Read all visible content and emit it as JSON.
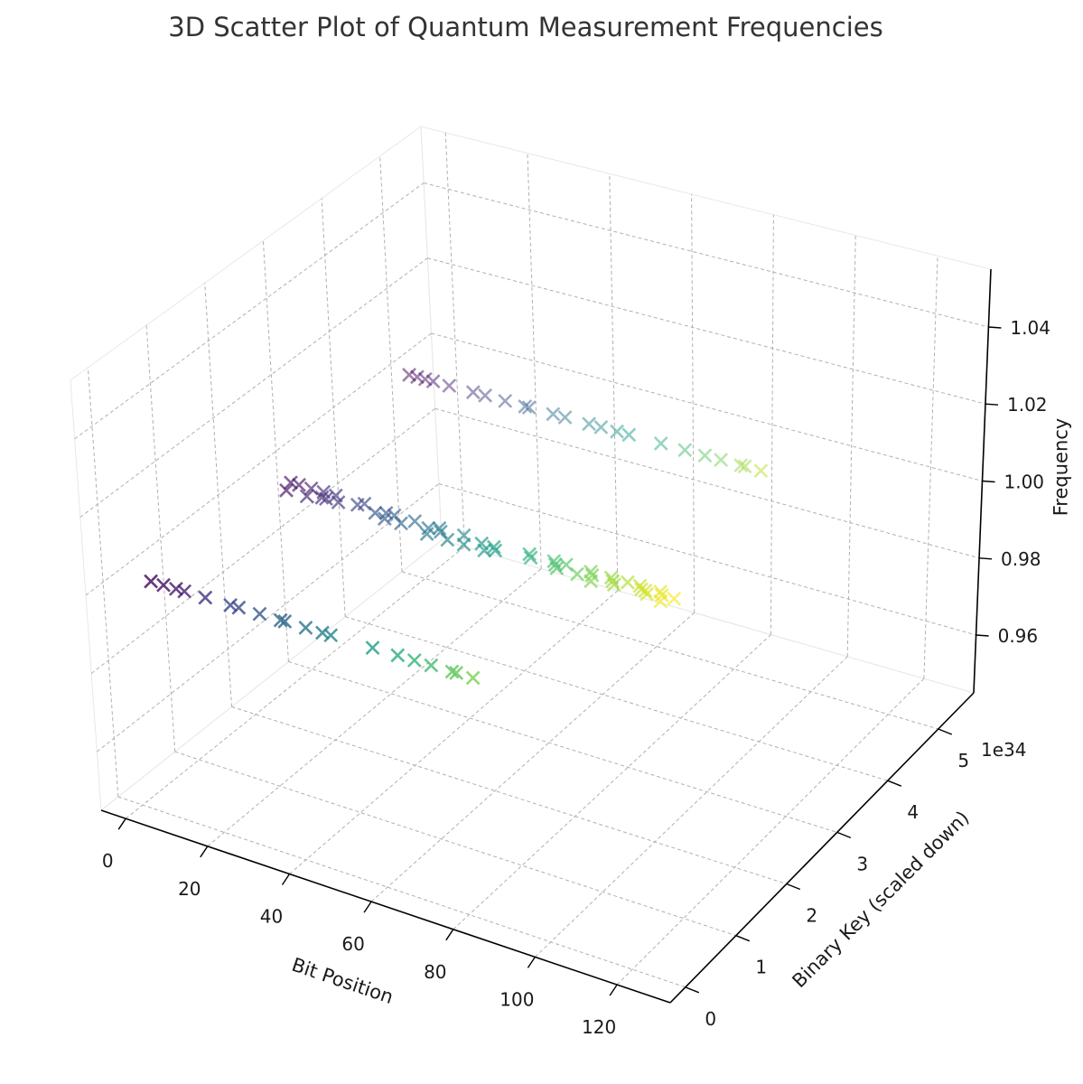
{
  "chart_data": {
    "type": "scatter",
    "projection": "3d",
    "title": "3D Scatter Plot of Quantum Measurement Frequencies",
    "xlabel": "Bit Position",
    "ylabel": "Binary Key (scaled down)",
    "zlabel": "Frequency",
    "y_offset_text": "1e34",
    "marker": "x",
    "colormap": "viridis",
    "grid": true,
    "x_ticks": [
      "0",
      "20",
      "40",
      "60",
      "80",
      "100",
      "120"
    ],
    "y_ticks": [
      "0",
      "1",
      "2",
      "3",
      "4",
      "5"
    ],
    "z_ticks": [
      "0.96",
      "0.98",
      "1.00",
      "1.02",
      "1.04"
    ],
    "xlim": [
      -6,
      133
    ],
    "ylim": [
      -0.3,
      5.7
    ],
    "zlim": [
      0.945,
      1.055
    ],
    "series": [
      {
        "z": 1.0,
        "points": [
          {
            "x": 0,
            "y": 4.9
          },
          {
            "x": 2,
            "y": 4.9
          },
          {
            "x": 4,
            "y": 4.9
          },
          {
            "x": 6,
            "y": 4.9
          },
          {
            "x": 10,
            "y": 4.9
          },
          {
            "x": 16,
            "y": 4.9
          },
          {
            "x": 19,
            "y": 4.9
          },
          {
            "x": 24,
            "y": 4.9
          },
          {
            "x": 29,
            "y": 4.9
          },
          {
            "x": 30,
            "y": 4.9
          },
          {
            "x": 36,
            "y": 4.9
          },
          {
            "x": 39,
            "y": 4.9
          },
          {
            "x": 45,
            "y": 4.9
          },
          {
            "x": 48,
            "y": 4.9
          },
          {
            "x": 52,
            "y": 4.9
          },
          {
            "x": 55,
            "y": 4.9
          },
          {
            "x": 63,
            "y": 4.9
          },
          {
            "x": 69,
            "y": 4.9
          },
          {
            "x": 74,
            "y": 4.9
          },
          {
            "x": 78,
            "y": 4.9
          },
          {
            "x": 83,
            "y": 4.9
          },
          {
            "x": 84,
            "y": 4.9
          },
          {
            "x": 88,
            "y": 4.9
          }
        ]
      },
      {
        "z": 1.0,
        "points": [
          {
            "x": 4,
            "y": 2.55
          },
          {
            "x": 6,
            "y": 2.55
          },
          {
            "x": 5,
            "y": 2.4
          },
          {
            "x": 9,
            "y": 2.55
          },
          {
            "x": 10,
            "y": 2.4
          },
          {
            "x": 12,
            "y": 2.55
          },
          {
            "x": 13,
            "y": 2.45
          },
          {
            "x": 15,
            "y": 2.55
          },
          {
            "x": 14,
            "y": 2.45
          },
          {
            "x": 17,
            "y": 2.45
          },
          {
            "x": 21,
            "y": 2.5
          },
          {
            "x": 22,
            "y": 2.55
          },
          {
            "x": 26,
            "y": 2.45
          },
          {
            "x": 28,
            "y": 2.5
          },
          {
            "x": 29,
            "y": 2.4
          },
          {
            "x": 30,
            "y": 2.5
          },
          {
            "x": 33,
            "y": 2.4
          },
          {
            "x": 35,
            "y": 2.5
          },
          {
            "x": 39,
            "y": 2.45
          },
          {
            "x": 40,
            "y": 2.35
          },
          {
            "x": 41,
            "y": 2.5
          },
          {
            "x": 42,
            "y": 2.45
          },
          {
            "x": 47,
            "y": 2.5
          },
          {
            "x": 45,
            "y": 2.35
          },
          {
            "x": 49,
            "y": 2.35
          },
          {
            "x": 52,
            "y": 2.45
          },
          {
            "x": 54,
            "y": 2.35
          },
          {
            "x": 55,
            "y": 2.45
          },
          {
            "x": 56,
            "y": 2.4
          },
          {
            "x": 63,
            "y": 2.5
          },
          {
            "x": 64,
            "y": 2.45
          },
          {
            "x": 69,
            "y": 2.5
          },
          {
            "x": 70,
            "y": 2.45
          },
          {
            "x": 71,
            "y": 2.4
          },
          {
            "x": 72,
            "y": 2.5
          },
          {
            "x": 76,
            "y": 2.4
          },
          {
            "x": 78,
            "y": 2.5
          },
          {
            "x": 79,
            "y": 2.45
          },
          {
            "x": 80,
            "y": 2.35
          },
          {
            "x": 83,
            "y": 2.5
          },
          {
            "x": 84,
            "y": 2.45
          },
          {
            "x": 85,
            "y": 2.4
          },
          {
            "x": 87,
            "y": 2.5
          },
          {
            "x": 90,
            "y": 2.5
          },
          {
            "x": 91,
            "y": 2.45
          },
          {
            "x": 92,
            "y": 2.45
          },
          {
            "x": 93,
            "y": 2.4
          },
          {
            "x": 95,
            "y": 2.5
          },
          {
            "x": 96,
            "y": 2.45
          },
          {
            "x": 97,
            "y": 2.35
          },
          {
            "x": 99,
            "y": 2.45
          }
        ]
      },
      {
        "z": 1.0,
        "points": [
          {
            "x": 2,
            "y": 0.25
          },
          {
            "x": 5,
            "y": 0.25
          },
          {
            "x": 8,
            "y": 0.25
          },
          {
            "x": 10,
            "y": 0.25
          },
          {
            "x": 15,
            "y": 0.25
          },
          {
            "x": 21,
            "y": 0.25
          },
          {
            "x": 23,
            "y": 0.25
          },
          {
            "x": 28,
            "y": 0.25
          },
          {
            "x": 33,
            "y": 0.25
          },
          {
            "x": 34,
            "y": 0.25
          },
          {
            "x": 39,
            "y": 0.25
          },
          {
            "x": 43,
            "y": 0.25
          },
          {
            "x": 45,
            "y": 0.25
          },
          {
            "x": 55,
            "y": 0.25
          },
          {
            "x": 61,
            "y": 0.25
          },
          {
            "x": 65,
            "y": 0.25
          },
          {
            "x": 69,
            "y": 0.25
          },
          {
            "x": 74,
            "y": 0.25
          },
          {
            "x": 75,
            "y": 0.25
          },
          {
            "x": 79,
            "y": 0.25
          }
        ]
      }
    ]
  }
}
